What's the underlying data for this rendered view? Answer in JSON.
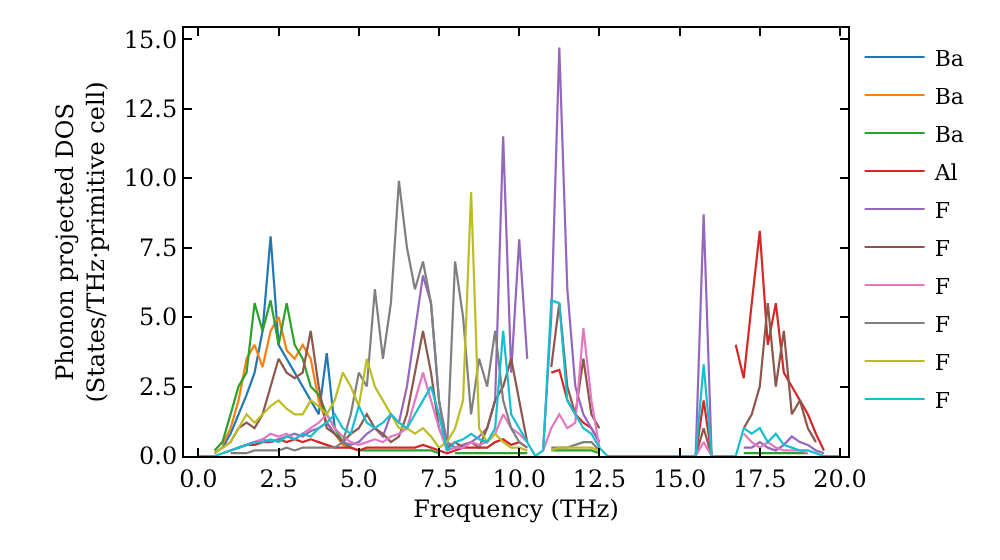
{
  "chart_data": {
    "type": "line",
    "xlabel": "Frequency (THz)",
    "ylabel": "Phonon projected DOS\n(States/THz·primitive cell)",
    "xlim": [
      -0.45,
      20.25
    ],
    "ylim": [
      0,
      15.4
    ],
    "xticks": [
      {
        "value": 0,
        "label": "0.0"
      },
      {
        "value": 2.5,
        "label": "2.5"
      },
      {
        "value": 5,
        "label": "5.0"
      },
      {
        "value": 7.5,
        "label": "7.5"
      },
      {
        "value": 10,
        "label": "10.0"
      },
      {
        "value": 12.5,
        "label": "12.5"
      },
      {
        "value": 15,
        "label": "15.0"
      },
      {
        "value": 17.5,
        "label": "17.5"
      },
      {
        "value": 20,
        "label": "20.0"
      }
    ],
    "yticks": [
      {
        "value": 0,
        "label": "0.0"
      },
      {
        "value": 2.5,
        "label": "2.5"
      },
      {
        "value": 5,
        "label": "5.0"
      },
      {
        "value": 7.5,
        "label": "7.5"
      },
      {
        "value": 10,
        "label": "10.0"
      },
      {
        "value": 12.5,
        "label": "12.5"
      },
      {
        "value": 15,
        "label": "15.0"
      }
    ],
    "grid": false,
    "legend": "top right",
    "marker": "none",
    "line_style": "solid",
    "x": [
      0,
      0.25,
      0.5,
      0.75,
      1,
      1.25,
      1.5,
      1.75,
      2,
      2.25,
      2.5,
      2.75,
      3,
      3.25,
      3.5,
      3.75,
      4,
      4.25,
      4.5,
      4.75,
      5,
      5.25,
      5.5,
      5.75,
      6,
      6.25,
      6.5,
      6.75,
      7,
      7.25,
      7.5,
      7.75,
      8,
      8.25,
      8.5,
      8.75,
      9,
      9.25,
      9.5,
      9.75,
      10,
      10.25,
      10.5,
      10.75,
      11,
      11.25,
      11.5,
      11.75,
      12,
      12.25,
      12.5,
      12.75,
      13,
      13.25,
      13.5,
      13.75,
      14,
      14.25,
      14.5,
      14.75,
      15,
      15.25,
      15.5,
      15.75,
      16,
      16.25,
      16.5,
      16.75,
      17,
      17.25,
      17.5,
      17.75,
      18,
      18.25,
      18.5,
      18.75,
      19,
      19.25,
      19.5,
      19.75,
      20
    ],
    "series": [
      {
        "name": "Ba",
        "color": "#1f77b4",
        "values": [
          null,
          null,
          null,
          0.3,
          0.8,
          1.5,
          2.2,
          3.0,
          4.5,
          7.9,
          4.0,
          3.5,
          3.0,
          2.5,
          2.0,
          1.5,
          3.7,
          1.0,
          null,
          null,
          null,
          null,
          null,
          null,
          null,
          null,
          null,
          null,
          null,
          null,
          null,
          null,
          null,
          null,
          null,
          null,
          null,
          null,
          null,
          null,
          null,
          null,
          null,
          null,
          null,
          null,
          null,
          null,
          null,
          null,
          null,
          null,
          null,
          null,
          null,
          null,
          null,
          null,
          null,
          null,
          null,
          null,
          null,
          null,
          null,
          null,
          null,
          null,
          null,
          null,
          null,
          null,
          null,
          null,
          null,
          null,
          null,
          null,
          null,
          null,
          null
        ]
      },
      {
        "name": "Ba",
        "color": "#ff7f0e",
        "values": [
          null,
          null,
          null,
          0.4,
          1.0,
          2.0,
          3.5,
          4.0,
          3.2,
          4.5,
          5.0,
          3.8,
          3.5,
          4.0,
          3.5,
          2.0,
          1.2,
          0.8,
          0.4,
          0.3,
          null,
          null,
          null,
          null,
          null,
          null,
          null,
          null,
          null,
          null,
          null,
          null,
          null,
          null,
          null,
          null,
          null,
          null,
          null,
          null,
          null,
          null,
          null,
          null,
          null,
          null,
          null,
          null,
          null,
          null,
          null,
          null,
          null,
          null,
          null,
          null,
          null,
          null,
          null,
          null,
          null,
          null,
          null,
          null,
          null,
          null,
          null,
          null,
          null,
          null,
          null,
          null,
          null,
          null,
          null,
          null,
          null,
          null,
          null,
          null,
          null
        ]
      },
      {
        "name": "Ba",
        "color": "#2ca02c",
        "values": [
          null,
          null,
          0.2,
          0.5,
          1.5,
          2.5,
          3.0,
          5.5,
          4.5,
          5.6,
          4.0,
          5.5,
          4.0,
          3.5,
          2.5,
          2.2,
          1.5,
          1.0,
          0.5,
          0.3,
          0.2,
          0.2,
          0.2,
          0.2,
          0.2,
          0.2,
          0.2,
          0.2,
          0.2,
          0.2,
          0.1,
          null,
          0.1,
          0.1,
          0.1,
          0.1,
          0.1,
          0.1,
          0.1,
          0.1,
          0.1,
          0.1,
          null,
          null,
          0.2,
          0.2,
          0.2,
          0.2,
          0.2,
          0.2,
          0.1,
          null,
          null,
          null,
          null,
          null,
          null,
          null,
          null,
          null,
          null,
          null,
          null,
          null,
          null,
          null,
          null,
          null,
          0.1,
          0.1,
          0.1,
          0.1,
          0.1,
          0.1,
          0.1,
          0.1,
          0.1,
          null,
          null,
          null,
          null
        ]
      },
      {
        "name": "Al",
        "color": "#d62728",
        "values": [
          null,
          null,
          null,
          null,
          null,
          0.3,
          0.4,
          0.4,
          0.5,
          0.5,
          0.6,
          0.5,
          0.6,
          0.5,
          0.6,
          0.5,
          0.4,
          0.3,
          0.3,
          0.3,
          0.2,
          0.3,
          0.3,
          0.3,
          0.3,
          0.3,
          0.3,
          0.3,
          0.4,
          0.3,
          0.2,
          0.1,
          0.2,
          0.3,
          0.3,
          0.3,
          0.3,
          0.5,
          0.6,
          0.4,
          0.5,
          0.3,
          null,
          null,
          3.0,
          3.1,
          2.0,
          1.5,
          1.2,
          1.0,
          0.5,
          null,
          null,
          null,
          null,
          null,
          null,
          null,
          null,
          null,
          null,
          null,
          0,
          2.0,
          0,
          null,
          null,
          4.0,
          2.8,
          5.5,
          8.1,
          4.0,
          5.5,
          3.0,
          2.5,
          2.0,
          1.5,
          0.8,
          0.2,
          null,
          null
        ]
      },
      {
        "name": "F",
        "color": "#9467bd",
        "values": [
          null,
          null,
          null,
          0.1,
          0.2,
          0.3,
          0.4,
          0.5,
          0.6,
          0.5,
          0.6,
          0.7,
          0.8,
          0.7,
          0.9,
          1.0,
          1.2,
          0.8,
          0.5,
          0.4,
          0.5,
          0.8,
          1.0,
          0.7,
          1.5,
          1.2,
          2.5,
          4.5,
          6.5,
          5.5,
          2.0,
          0.5,
          0.3,
          0.4,
          0.5,
          0.7,
          1.0,
          2.0,
          11.5,
          3.0,
          7.8,
          3.5,
          null,
          0.3,
          5.0,
          14.7,
          6.0,
          2.5,
          1.5,
          1.0,
          0.5,
          null,
          null,
          null,
          null,
          null,
          null,
          null,
          null,
          null,
          null,
          null,
          0,
          8.7,
          0,
          null,
          null,
          null,
          0.3,
          0.3,
          0.5,
          0.3,
          0.2,
          0.4,
          0.7,
          0.5,
          0.4,
          0.2,
          0.1,
          null,
          null
        ]
      },
      {
        "name": "F",
        "color": "#8c564b",
        "values": [
          null,
          null,
          0.1,
          0.3,
          0.5,
          1.0,
          1.2,
          1.0,
          1.5,
          2.5,
          3.5,
          3.0,
          2.8,
          3.0,
          4.5,
          2.5,
          1.0,
          0.8,
          0.5,
          0.8,
          1.0,
          1.5,
          1.0,
          0.8,
          0.5,
          0.7,
          1.5,
          3.0,
          4.5,
          3.0,
          1.0,
          0.3,
          0.5,
          0.3,
          0.5,
          0.3,
          1.0,
          2.0,
          2.5,
          3.5,
          2.0,
          0.5,
          null,
          null,
          3.2,
          5.5,
          2.5,
          1.5,
          3.5,
          1.5,
          1.0,
          null,
          null,
          null,
          null,
          null,
          null,
          null,
          null,
          null,
          null,
          null,
          0,
          1.0,
          0,
          null,
          null,
          null,
          1.0,
          1.5,
          2.5,
          5.5,
          2.5,
          4.5,
          1.5,
          2.0,
          1.0,
          0.5,
          null,
          null,
          null
        ]
      },
      {
        "name": "F",
        "color": "#e377c2",
        "values": [
          null,
          null,
          null,
          null,
          null,
          0.3,
          0.4,
          0.5,
          0.6,
          0.8,
          0.7,
          0.8,
          0.6,
          0.8,
          1.0,
          1.2,
          1.5,
          1.0,
          0.7,
          0.5,
          0.4,
          0.5,
          0.6,
          0.5,
          0.7,
          0.8,
          1.0,
          2.0,
          3.0,
          2.0,
          1.0,
          0.2,
          0.3,
          0.3,
          0.5,
          0.4,
          0.5,
          0.8,
          1.5,
          1.0,
          0.8,
          0.5,
          null,
          0.2,
          1.0,
          1.5,
          1.0,
          1.2,
          4.6,
          2.0,
          0.3,
          null,
          null,
          null,
          null,
          null,
          null,
          null,
          null,
          null,
          null,
          null,
          0,
          0.5,
          0,
          null,
          null,
          null,
          0.8,
          0.5,
          0.3,
          0.5,
          0.3,
          0.2,
          0.2,
          0.2,
          0.1,
          null,
          null,
          null,
          null
        ]
      },
      {
        "name": "F",
        "color": "#7f7f7f",
        "values": [
          null,
          null,
          null,
          null,
          0.1,
          0.1,
          0.1,
          0.2,
          0.2,
          0.2,
          0.2,
          0.3,
          0.2,
          0.3,
          0.3,
          0.3,
          0.3,
          0.3,
          0.5,
          1.5,
          3.0,
          2.5,
          6.0,
          3.5,
          5.5,
          9.9,
          7.5,
          6.0,
          7.0,
          5.5,
          2.0,
          0.2,
          7.0,
          5.0,
          1.5,
          3.5,
          2.5,
          4.5,
          2.0,
          1.0,
          0.5,
          0.3,
          null,
          null,
          0.3,
          0.3,
          0.3,
          0.4,
          0.5,
          0.5,
          0.2,
          null,
          null,
          null,
          null,
          null,
          null,
          null,
          null,
          null,
          null,
          null,
          null,
          null,
          null,
          null,
          null,
          null,
          null,
          null,
          null,
          null,
          null,
          null,
          null,
          null,
          null,
          null,
          null,
          null,
          null
        ]
      },
      {
        "name": "F",
        "color": "#bcbd22",
        "values": [
          null,
          null,
          0.1,
          0.3,
          0.5,
          1.0,
          1.5,
          1.2,
          1.5,
          1.8,
          2.0,
          1.7,
          1.5,
          1.5,
          2.0,
          1.8,
          1.5,
          2.0,
          3.0,
          2.5,
          1.8,
          3.5,
          2.5,
          2.0,
          1.5,
          1.0,
          1.0,
          0.8,
          1.0,
          0.7,
          0.3,
          0.5,
          1.0,
          2.0,
          9.5,
          1.0,
          0.5,
          0.8,
          0.5,
          0.3,
          0.3,
          0.2,
          null,
          null,
          0.2,
          0.3,
          0.3,
          0.3,
          0.3,
          0.3,
          0.2,
          null,
          null,
          null,
          null,
          null,
          null,
          null,
          null,
          null,
          null,
          null,
          null,
          null,
          null,
          null,
          null,
          null,
          null,
          null,
          null,
          null,
          null,
          null,
          null,
          null,
          null,
          null,
          null,
          null,
          null
        ]
      },
      {
        "name": "F",
        "color": "#17becf",
        "values": [
          0,
          0,
          0,
          0.1,
          0.2,
          0.3,
          0.4,
          0.5,
          0.5,
          0.6,
          0.5,
          0.7,
          0.6,
          0.8,
          0.7,
          1.0,
          1.2,
          1.5,
          1.0,
          0.8,
          1.8,
          1.2,
          1.0,
          1.2,
          1.5,
          1.2,
          1.0,
          1.5,
          2.0,
          2.5,
          1.5,
          0.2,
          0.5,
          0.6,
          0.8,
          0.6,
          0.5,
          1.0,
          4.5,
          1.5,
          1.0,
          0.5,
          0,
          0.2,
          5.6,
          5.5,
          2.0,
          1.5,
          1.0,
          0.8,
          0.3,
          0,
          0,
          0,
          0,
          0,
          0,
          0,
          0,
          0,
          0,
          0,
          0,
          3.3,
          0,
          0,
          0,
          0,
          1.0,
          0.8,
          1.0,
          0.5,
          0.8,
          0.4,
          0.3,
          0.2,
          0.2,
          0.1,
          0,
          0,
          0
        ]
      }
    ]
  }
}
